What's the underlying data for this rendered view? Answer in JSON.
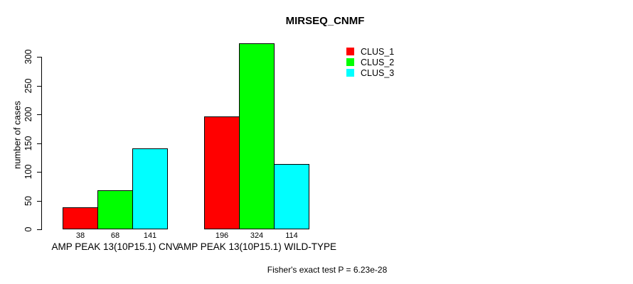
{
  "figure": {
    "background_color": "#ffffff",
    "text_color": "#000000"
  },
  "chart_data": {
    "type": "bar",
    "title": "MIRSEQ_CNMF",
    "xlabel": "",
    "ylabel": "number of cases",
    "categories": [
      "AMP PEAK 13(10P15.1) CNV",
      "AMP PEAK 13(10P15.1) WILD-TYPE"
    ],
    "series": [
      {
        "name": "CLUS_1",
        "color": "#ff0000",
        "values": [
          38,
          196
        ]
      },
      {
        "name": "CLUS_2",
        "color": "#00ff00",
        "values": [
          68,
          324
        ]
      },
      {
        "name": "CLUS_3",
        "color": "#00ffff",
        "values": [
          141,
          114
        ]
      }
    ],
    "bar_value_labels": [
      [
        "38",
        "68",
        "141"
      ],
      [
        "196",
        "324",
        "114"
      ]
    ],
    "y_ticks": [
      0,
      50,
      100,
      150,
      200,
      250,
      300
    ],
    "ylim": [
      0,
      325
    ],
    "grid": false,
    "legend_position": "top-right",
    "legend_border": false,
    "annotation": "Fisher's exact test P = 6.23e-28"
  }
}
